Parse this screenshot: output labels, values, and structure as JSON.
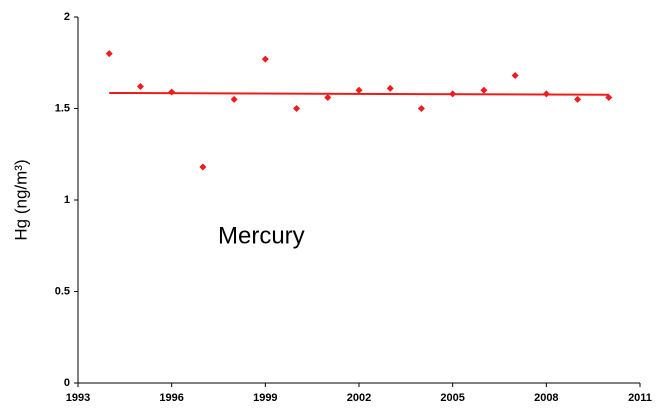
{
  "chart_data": {
    "type": "scatter",
    "y_label": "Hg (ng/m³)",
    "annotation": "Mercury",
    "x": [
      1994,
      1995,
      1996,
      1997,
      1998,
      1999,
      2000,
      2001,
      2002,
      2003,
      2004,
      2005,
      2006,
      2007,
      2008,
      2009,
      2010
    ],
    "series": [
      {
        "color": "#ee1c1c",
        "values": [
          1.8,
          1.62,
          1.59,
          1.18,
          1.55,
          1.77,
          1.5,
          1.56,
          1.6,
          1.61,
          1.5,
          1.58,
          1.6,
          1.68,
          1.58,
          1.55,
          1.56
        ]
      }
    ],
    "trend": {
      "color": "#ee1c1c",
      "x": [
        1994,
        2010
      ],
      "values": [
        1.585,
        1.575
      ]
    },
    "xlim": [
      1993,
      2011
    ],
    "xticks": [
      1993,
      1996,
      1999,
      2002,
      2005,
      2008,
      2011
    ],
    "ylim": [
      0,
      2
    ],
    "yticks": [
      0,
      0.5,
      1,
      1.5,
      2
    ],
    "grid": false
  }
}
